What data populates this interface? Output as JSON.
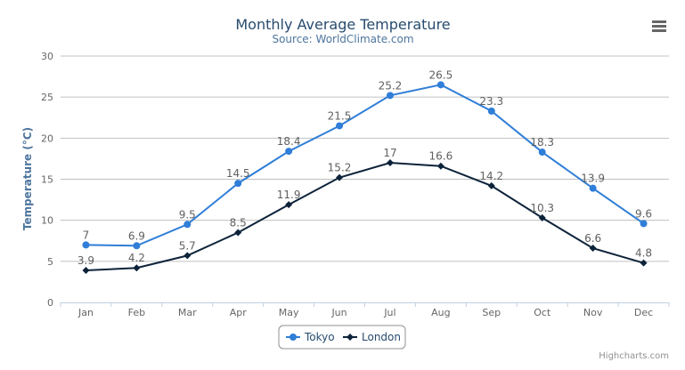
{
  "chart_data": {
    "type": "line",
    "title": "Monthly Average Temperature",
    "subtitle": "Source: WorldClimate.com",
    "xlabel": "",
    "ylabel": "Temperature (°C)",
    "categories": [
      "Jan",
      "Feb",
      "Mar",
      "Apr",
      "May",
      "Jun",
      "Jul",
      "Aug",
      "Sep",
      "Oct",
      "Nov",
      "Dec"
    ],
    "ylim": [
      0,
      30
    ],
    "yticks": [
      0,
      5,
      10,
      15,
      20,
      25,
      30
    ],
    "grid": true,
    "legend_position": "bottom-center",
    "series": [
      {
        "name": "Tokyo",
        "color": "#2f7ed8",
        "marker": "circle",
        "values": [
          7,
          6.9,
          9.5,
          14.5,
          18.4,
          21.5,
          25.2,
          26.5,
          23.3,
          18.3,
          13.9,
          9.6
        ]
      },
      {
        "name": "London",
        "color": "#0d233a",
        "marker": "diamond",
        "values": [
          3.9,
          4.2,
          5.7,
          8.5,
          11.9,
          15.2,
          17,
          16.6,
          14.2,
          10.3,
          6.6,
          4.8
        ]
      }
    ],
    "data_labels": true
  },
  "menu_icon": "hamburger-menu-icon",
  "credits": "Highcharts.com"
}
